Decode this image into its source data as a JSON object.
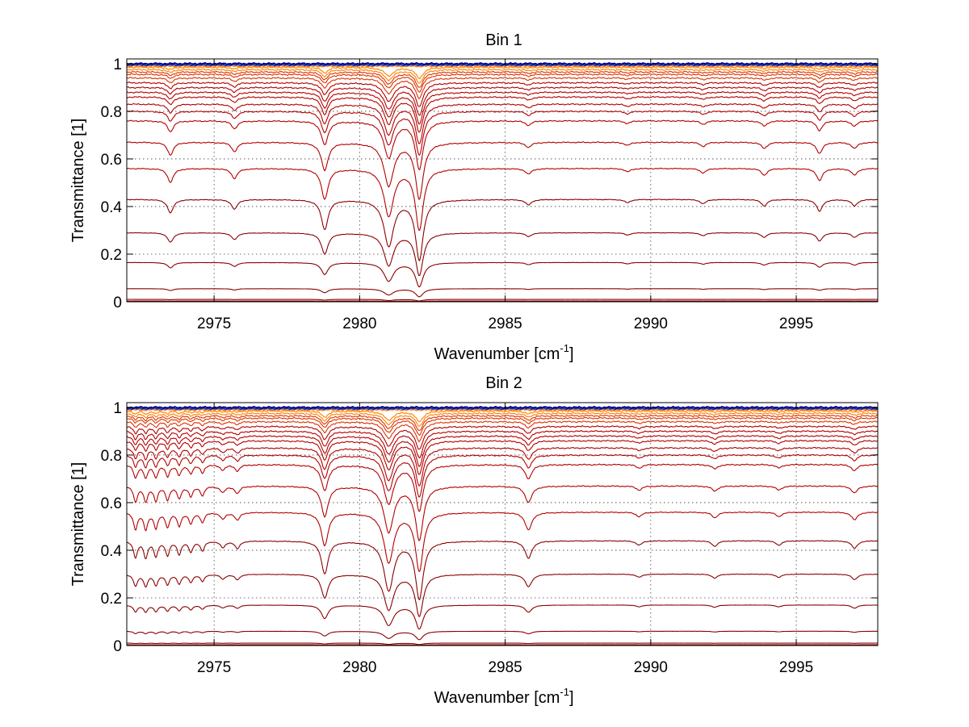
{
  "chart_data": [
    {
      "type": "line",
      "title": "Bin 1",
      "xlabel": "Wavenumber [cm",
      "xlabel_sup": "-1",
      "xlabel_tail": "]",
      "ylabel": "Transmittance [1]",
      "xlim": [
        2972,
        2997.8
      ],
      "ylim": [
        0,
        1.02
      ],
      "grid": true,
      "xticks": [
        2975,
        2980,
        2985,
        2990,
        2995
      ],
      "xtick_labels": [
        "2975",
        "2980",
        "2985",
        "2990",
        "2995"
      ],
      "yticks": [
        0,
        0.2,
        0.4,
        0.6,
        0.8,
        1
      ],
      "ytick_labels": [
        "0",
        "0.2",
        "0.4",
        "0.6",
        "0.8",
        "1"
      ],
      "baselines": [
        1.0,
        0.995,
        0.99,
        0.985,
        0.975,
        0.965,
        0.955,
        0.94,
        0.92,
        0.9,
        0.88,
        0.86,
        0.83,
        0.8,
        0.76,
        0.67,
        0.56,
        0.43,
        0.29,
        0.165,
        0.055,
        0.01,
        0.003
      ],
      "absorption_lines": [
        {
          "x": 2973.5,
          "depth": 0.25,
          "width": 0.12
        },
        {
          "x": 2975.7,
          "depth": 0.18,
          "width": 0.12
        },
        {
          "x": 2978.8,
          "depth": 0.55,
          "width": 0.14
        },
        {
          "x": 2981.0,
          "depth": 0.85,
          "width": 0.2
        },
        {
          "x": 2982.05,
          "depth": 1.1,
          "width": 0.16
        },
        {
          "x": 2985.8,
          "depth": 0.1,
          "width": 0.12
        },
        {
          "x": 2989.2,
          "depth": 0.06,
          "width": 0.12
        },
        {
          "x": 2991.8,
          "depth": 0.08,
          "width": 0.12
        },
        {
          "x": 2993.9,
          "depth": 0.12,
          "width": 0.12
        },
        {
          "x": 2995.8,
          "depth": 0.22,
          "width": 0.12
        },
        {
          "x": 2997.0,
          "depth": 0.12,
          "width": 0.12
        }
      ]
    },
    {
      "type": "line",
      "title": "Bin 2",
      "xlabel": "Wavenumber [cm",
      "xlabel_sup": "-1",
      "xlabel_tail": "]",
      "ylabel": "Transmittance [1]",
      "xlim": [
        2972,
        2997.8
      ],
      "ylim": [
        0,
        1.02
      ],
      "grid": true,
      "xticks": [
        2975,
        2980,
        2985,
        2990,
        2995
      ],
      "xtick_labels": [
        "2975",
        "2980",
        "2985",
        "2990",
        "2995"
      ],
      "yticks": [
        0,
        0.2,
        0.4,
        0.6,
        0.8,
        1
      ],
      "ytick_labels": [
        "0",
        "0.2",
        "0.4",
        "0.6",
        "0.8",
        "1"
      ],
      "baselines": [
        1.0,
        0.995,
        0.99,
        0.985,
        0.975,
        0.965,
        0.955,
        0.94,
        0.92,
        0.9,
        0.88,
        0.86,
        0.83,
        0.8,
        0.76,
        0.67,
        0.56,
        0.44,
        0.3,
        0.17,
        0.06,
        0.01,
        0.003
      ],
      "absorption_lines": [
        {
          "x": 2972.3,
          "depth": 0.3,
          "width": 0.08
        },
        {
          "x": 2972.65,
          "depth": 0.3,
          "width": 0.08
        },
        {
          "x": 2973.0,
          "depth": 0.28,
          "width": 0.08
        },
        {
          "x": 2973.4,
          "depth": 0.26,
          "width": 0.08
        },
        {
          "x": 2973.8,
          "depth": 0.24,
          "width": 0.08
        },
        {
          "x": 2974.2,
          "depth": 0.2,
          "width": 0.08
        },
        {
          "x": 2974.6,
          "depth": 0.18,
          "width": 0.08
        },
        {
          "x": 2975.3,
          "depth": 0.12,
          "width": 0.1
        },
        {
          "x": 2975.8,
          "depth": 0.14,
          "width": 0.1
        },
        {
          "x": 2978.8,
          "depth": 0.6,
          "width": 0.14
        },
        {
          "x": 2981.0,
          "depth": 0.9,
          "width": 0.2
        },
        {
          "x": 2982.05,
          "depth": 1.05,
          "width": 0.16
        },
        {
          "x": 2985.8,
          "depth": 0.32,
          "width": 0.14
        },
        {
          "x": 2989.6,
          "depth": 0.08,
          "width": 0.12
        },
        {
          "x": 2992.2,
          "depth": 0.1,
          "width": 0.12
        },
        {
          "x": 2994.4,
          "depth": 0.08,
          "width": 0.12
        },
        {
          "x": 2997.0,
          "depth": 0.14,
          "width": 0.12
        }
      ]
    }
  ],
  "colors": {
    "deep_red": "#8b0000",
    "red": "#b40000",
    "orange_red": "#dd3300",
    "orange": "#ff7f00",
    "yellow": "#ffd700",
    "blue": "#0033cc",
    "navy": "#00008b",
    "cyan": "#00bfff"
  }
}
